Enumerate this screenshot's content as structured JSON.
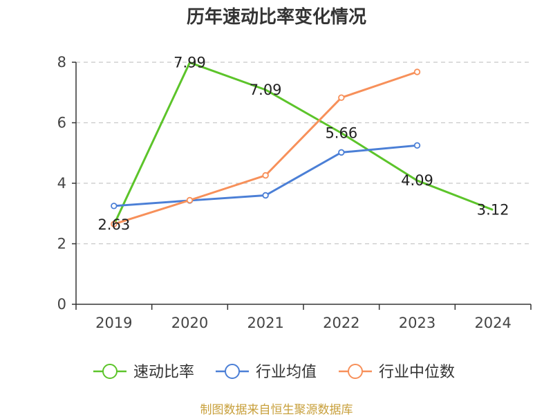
{
  "chart_data": {
    "type": "line",
    "title": "历年速动比率变化情况",
    "categories": [
      "2019",
      "2020",
      "2021",
      "2022",
      "2023",
      "2024"
    ],
    "ylim": [
      0,
      8
    ],
    "yticks": [
      "0",
      "2",
      "4",
      "6",
      "8"
    ],
    "grid": true,
    "legend_position": "bottom",
    "series": [
      {
        "name": "速动比率",
        "color": "#5cc42a",
        "values": [
          2.63,
          7.99,
          7.09,
          5.66,
          4.09,
          3.12
        ],
        "labels": [
          "2.63",
          "7.99",
          "7.09",
          "5.66",
          "4.09",
          "3.12"
        ],
        "markers": false
      },
      {
        "name": "行业均值",
        "color": "#4b7fd6",
        "values": [
          3.25,
          3.43,
          3.6,
          5.02,
          5.25,
          null
        ],
        "markers": true
      },
      {
        "name": "行业中位数",
        "color": "#f7905a",
        "values": [
          2.65,
          3.44,
          4.26,
          6.83,
          7.68,
          null
        ],
        "markers": true
      }
    ]
  },
  "source_text": "制图数据来自恒生聚源数据库"
}
